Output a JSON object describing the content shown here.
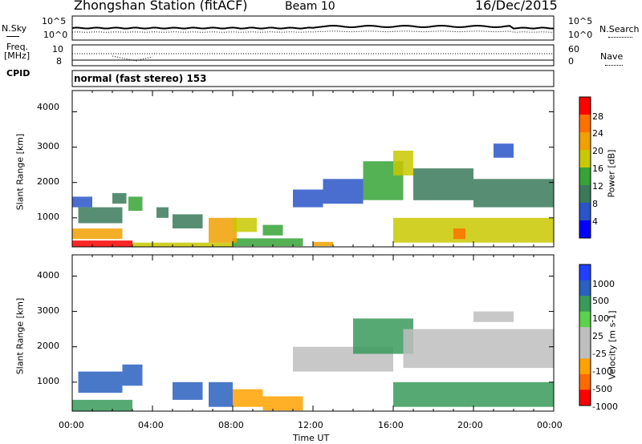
{
  "header": {
    "station_title": "Zhongshan Station (fitACF)",
    "beam": "Beam 10",
    "date": "16/Dec/2015"
  },
  "noise_panel": {
    "left_label": "N.Sky",
    "left_ticks": [
      "10^5",
      "10^0"
    ],
    "right_ticks": [
      "10^5",
      "10^0"
    ],
    "right_label": "N.Search"
  },
  "freq_panel": {
    "left_label_line1": "Freq.",
    "left_label_line2": "[MHz]",
    "left_ticks": [
      "10",
      "8"
    ],
    "right_ticks": [
      "60",
      "0"
    ],
    "right_label": "Nave"
  },
  "cpid": {
    "label": "CPID",
    "text": "normal (fast stereo) 153"
  },
  "colors": {
    "power": [
      "#0000ff",
      "#2a55c8",
      "#3a7a5a",
      "#36a336",
      "#c8c800",
      "#f0a000",
      "#ff7000",
      "#ff0000"
    ],
    "velocity": [
      "#ff0000",
      "#ff6a00",
      "#ffa200",
      "#bebebe",
      "#bebebe",
      "#5bd24b",
      "#3a9a5a",
      "#2a60c0",
      "#2040ff"
    ]
  },
  "chart_data": [
    {
      "type": "heatmap",
      "title": "Power",
      "ylabel": "Slant Range [km]",
      "xlabel": "Time UT",
      "ylim": [
        180,
        4600
      ],
      "xlim": [
        "00:00",
        "24:00"
      ],
      "y_ticks": [
        "4000",
        "3000",
        "2000",
        "1000"
      ],
      "x_ticks": [
        "00:00",
        "04:00",
        "08:00",
        "12:00",
        "16:00",
        "20:00",
        "00:00"
      ],
      "colorbar": {
        "label": "Power [dB]",
        "range": [
          0,
          32
        ],
        "ticks": [
          "28",
          "24",
          "20",
          "16",
          "12",
          "8",
          "4"
        ]
      },
      "regions": [
        {
          "t": [
            0.0,
            3.0
          ],
          "r": [
            180,
            360
          ],
          "v": 28
        },
        {
          "t": [
            3.0,
            8.0
          ],
          "r": [
            180,
            300
          ],
          "v": 18
        },
        {
          "t": [
            8.0,
            11.5
          ],
          "r": [
            200,
            420
          ],
          "v": 14
        },
        {
          "t": [
            12.0,
            13.0
          ],
          "r": [
            200,
            320
          ],
          "v": 20
        },
        {
          "t": [
            0.0,
            2.5
          ],
          "r": [
            400,
            700
          ],
          "v": 20
        },
        {
          "t": [
            0.3,
            2.5
          ],
          "r": [
            850,
            1300
          ],
          "v": 8
        },
        {
          "t": [
            0.0,
            1.0
          ],
          "r": [
            1300,
            1600
          ],
          "v": 6
        },
        {
          "t": [
            2.0,
            2.7
          ],
          "r": [
            1400,
            1700
          ],
          "v": 8
        },
        {
          "t": [
            2.8,
            3.5
          ],
          "r": [
            1200,
            1600
          ],
          "v": 12
        },
        {
          "t": [
            4.2,
            4.8
          ],
          "r": [
            1000,
            1300
          ],
          "v": 8
        },
        {
          "t": [
            5.0,
            6.5
          ],
          "r": [
            700,
            1100
          ],
          "v": 10
        },
        {
          "t": [
            6.8,
            8.2
          ],
          "r": [
            300,
            1000
          ],
          "v": 22
        },
        {
          "t": [
            8.0,
            9.2
          ],
          "r": [
            600,
            1000
          ],
          "v": 16
        },
        {
          "t": [
            9.5,
            10.5
          ],
          "r": [
            500,
            800
          ],
          "v": 12
        },
        {
          "t": [
            11.0,
            12.5
          ],
          "r": [
            1300,
            1800
          ],
          "v": 6
        },
        {
          "t": [
            12.5,
            14.5
          ],
          "r": [
            1400,
            2100
          ],
          "v": 7
        },
        {
          "t": [
            14.5,
            16.5
          ],
          "r": [
            1500,
            2600
          ],
          "v": 14
        },
        {
          "t": [
            16.0,
            17.0
          ],
          "r": [
            2200,
            2900
          ],
          "v": 16
        },
        {
          "t": [
            16.0,
            24.0
          ],
          "r": [
            300,
            1000
          ],
          "v": 16
        },
        {
          "t": [
            17.0,
            20.0
          ],
          "r": [
            1500,
            2400
          ],
          "v": 10
        },
        {
          "t": [
            19.0,
            19.6
          ],
          "r": [
            400,
            700
          ],
          "v": 26
        },
        {
          "t": [
            20.0,
            24.0
          ],
          "r": [
            1300,
            2100
          ],
          "v": 10
        },
        {
          "t": [
            21.0,
            22.0
          ],
          "r": [
            2700,
            3100
          ],
          "v": 6
        }
      ]
    },
    {
      "type": "heatmap",
      "title": "Velocity",
      "ylabel": "Slant Range [km]",
      "xlabel": "Time UT",
      "ylim": [
        180,
        4600
      ],
      "xlim": [
        "00:00",
        "24:00"
      ],
      "y_ticks": [
        "4000",
        "3000",
        "2000",
        "1000"
      ],
      "x_ticks": [
        "00:00",
        "04:00",
        "08:00",
        "12:00",
        "16:00",
        "20:00",
        "00:00"
      ],
      "colorbar": {
        "label": "Velocity [m s-1]",
        "ticks": [
          "1000",
          "500",
          "100",
          "25",
          "-25",
          "-100",
          "-500",
          "-1000"
        ]
      },
      "regions": [
        {
          "t": [
            0.0,
            3.0
          ],
          "r": [
            180,
            500
          ],
          "v": 100
        },
        {
          "t": [
            0.3,
            2.5
          ],
          "r": [
            700,
            1300
          ],
          "v": 800
        },
        {
          "t": [
            2.5,
            3.5
          ],
          "r": [
            900,
            1500
          ],
          "v": 600
        },
        {
          "t": [
            5.0,
            6.5
          ],
          "r": [
            500,
            1000
          ],
          "v": 700
        },
        {
          "t": [
            6.8,
            8.0
          ],
          "r": [
            300,
            1000
          ],
          "v": 600
        },
        {
          "t": [
            8.0,
            9.5
          ],
          "r": [
            300,
            800
          ],
          "v": -300
        },
        {
          "t": [
            9.5,
            11.5
          ],
          "r": [
            200,
            600
          ],
          "v": -200
        },
        {
          "t": [
            11.0,
            16.0
          ],
          "r": [
            1300,
            2000
          ],
          "v": 0
        },
        {
          "t": [
            14.0,
            17.0
          ],
          "r": [
            1800,
            2800
          ],
          "v": 200
        },
        {
          "t": [
            16.0,
            24.0
          ],
          "r": [
            300,
            1000
          ],
          "v": 150
        },
        {
          "t": [
            16.5,
            24.0
          ],
          "r": [
            1400,
            2500
          ],
          "v": 0
        },
        {
          "t": [
            20.0,
            22.0
          ],
          "r": [
            2700,
            3000
          ],
          "v": 0
        }
      ]
    }
  ]
}
